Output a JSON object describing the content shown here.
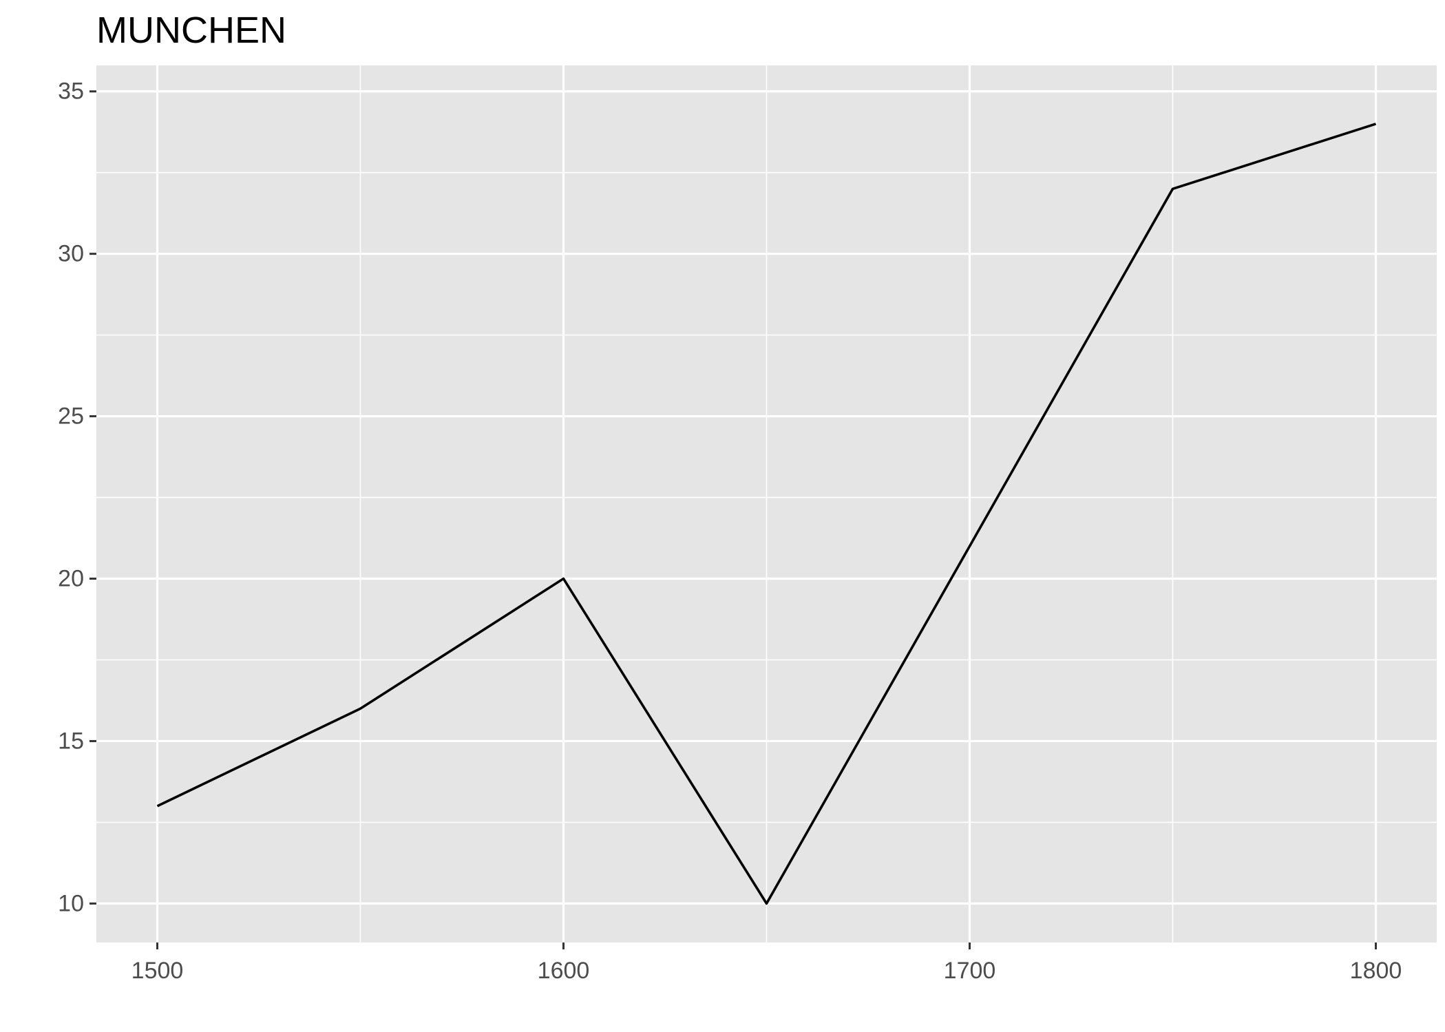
{
  "chart_data": {
    "type": "line",
    "title": "MUNCHEN",
    "xlabel": "",
    "ylabel": "",
    "x": [
      1500,
      1550,
      1600,
      1650,
      1700,
      1750,
      1800
    ],
    "series": [
      {
        "values": [
          13,
          16,
          20,
          10,
          21,
          32,
          34
        ]
      }
    ],
    "xlim": [
      1485,
      1815
    ],
    "ylim": [
      8.8,
      35.8
    ],
    "x_ticks": [
      1500,
      1600,
      1700,
      1800
    ],
    "x_tick_labels": [
      "1500",
      "1600",
      "1700",
      "1800"
    ],
    "x_minor_ticks": [
      1550,
      1650,
      1750
    ],
    "y_ticks": [
      10,
      15,
      20,
      25,
      30,
      35
    ],
    "y_tick_labels": [
      "10",
      "15",
      "20",
      "25",
      "30",
      "35"
    ],
    "y_minor_ticks": [
      12.5,
      17.5,
      22.5,
      27.5,
      32.5
    ],
    "grid": true,
    "legend": "none",
    "colors": {
      "panel_background": "#e5e5e5",
      "grid_line": "#ffffff",
      "series_line": "#000000",
      "tick_label": "#4d4d4d",
      "tick_mark": "#333333"
    }
  }
}
